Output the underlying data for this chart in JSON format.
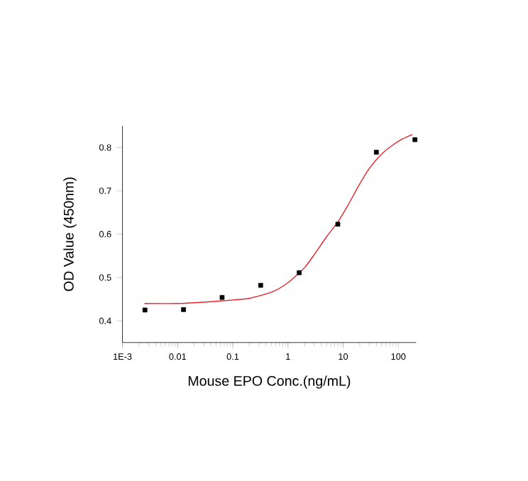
{
  "chart_data": {
    "type": "scatter",
    "xlabel": "Mouse EPO Conc.(ng/mL)",
    "ylabel": "OD Value (450nm)",
    "log": "x",
    "xlim": [
      0.001,
      210
    ],
    "ylim": [
      0.35,
      0.85
    ],
    "xticks": [
      {
        "value": 0.001,
        "label": "1E-3"
      },
      0.01,
      0.1,
      1,
      10,
      100
    ],
    "yticks": [
      0.4,
      0.5,
      0.6,
      0.7,
      0.8
    ],
    "series": [
      {
        "color": "#000000",
        "marker": "square",
        "x": [
          0.00256,
          0.0128,
          0.064,
          0.32,
          1.6,
          8,
          40,
          200
        ],
        "values": [
          0.425,
          0.426,
          0.454,
          0.482,
          0.511,
          0.623,
          0.789,
          0.818
        ]
      },
      {
        "type": "line",
        "color": "#e8202a",
        "marker": "none",
        "line_style": "solid",
        "x": [
          0.0025,
          0.01,
          0.03,
          0.1,
          0.2,
          0.5,
          1,
          2,
          3,
          5,
          8,
          12,
          20,
          30,
          50,
          80,
          120,
          180
        ],
        "values": [
          0.44,
          0.44,
          0.443,
          0.448,
          0.452,
          0.466,
          0.488,
          0.523,
          0.553,
          0.594,
          0.628,
          0.665,
          0.716,
          0.752,
          0.785,
          0.806,
          0.82,
          0.83
        ]
      }
    ]
  }
}
